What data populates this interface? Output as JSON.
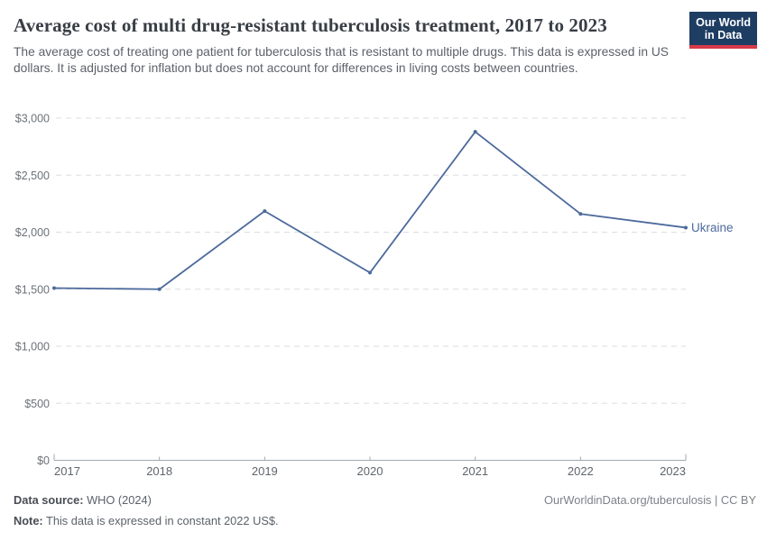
{
  "header": {
    "title": "Average cost of multi drug-resistant tuberculosis treatment, 2017 to 2023",
    "subtitle": "The average cost of treating one patient for tuberculosis that is resistant to multiple drugs. This data is expressed in US dollars. It is adjusted for inflation but does not account for differences in living costs between countries.",
    "logo": {
      "line1": "Our World",
      "line2": "in Data",
      "background": "#1d3d63",
      "accent": "#d73a49",
      "text_color": "#ffffff"
    }
  },
  "chart_data": {
    "type": "line",
    "title": "Average cost of multi drug-resistant tuberculosis treatment, 2017 to 2023",
    "x": [
      "2017",
      "2018",
      "2019",
      "2020",
      "2021",
      "2022",
      "2023"
    ],
    "series": [
      {
        "name": "Ukraine",
        "color": "#4C6A9C",
        "values": [
          1510,
          1500,
          2185,
          1645,
          2880,
          2160,
          2040
        ]
      }
    ],
    "y_axis": {
      "min": 0,
      "max": 3000,
      "ticks": [
        {
          "value": 0,
          "label": "$0"
        },
        {
          "value": 500,
          "label": "$500"
        },
        {
          "value": 1000,
          "label": "$1,000"
        },
        {
          "value": 1500,
          "label": "$1,500"
        },
        {
          "value": 2000,
          "label": "$2,000"
        },
        {
          "value": 2500,
          "label": "$2,500"
        },
        {
          "value": 3000,
          "label": "$3,000"
        }
      ]
    },
    "grid": {
      "horizontal": true,
      "style": "dashed",
      "color": "#dcdee1"
    },
    "axis_color": "#a2a8ae",
    "y_tick_label_color": "#6c7278",
    "x_tick_label_color": "#5f656c",
    "legend_position": "end-of-line"
  },
  "footer": {
    "source_label": "Data source:",
    "source_value": "WHO (2024)",
    "note_label": "Note:",
    "note_value": "This data is expressed in constant 2022 US$.",
    "attribution": "OurWorldinData.org/tuberculosis | CC BY"
  }
}
